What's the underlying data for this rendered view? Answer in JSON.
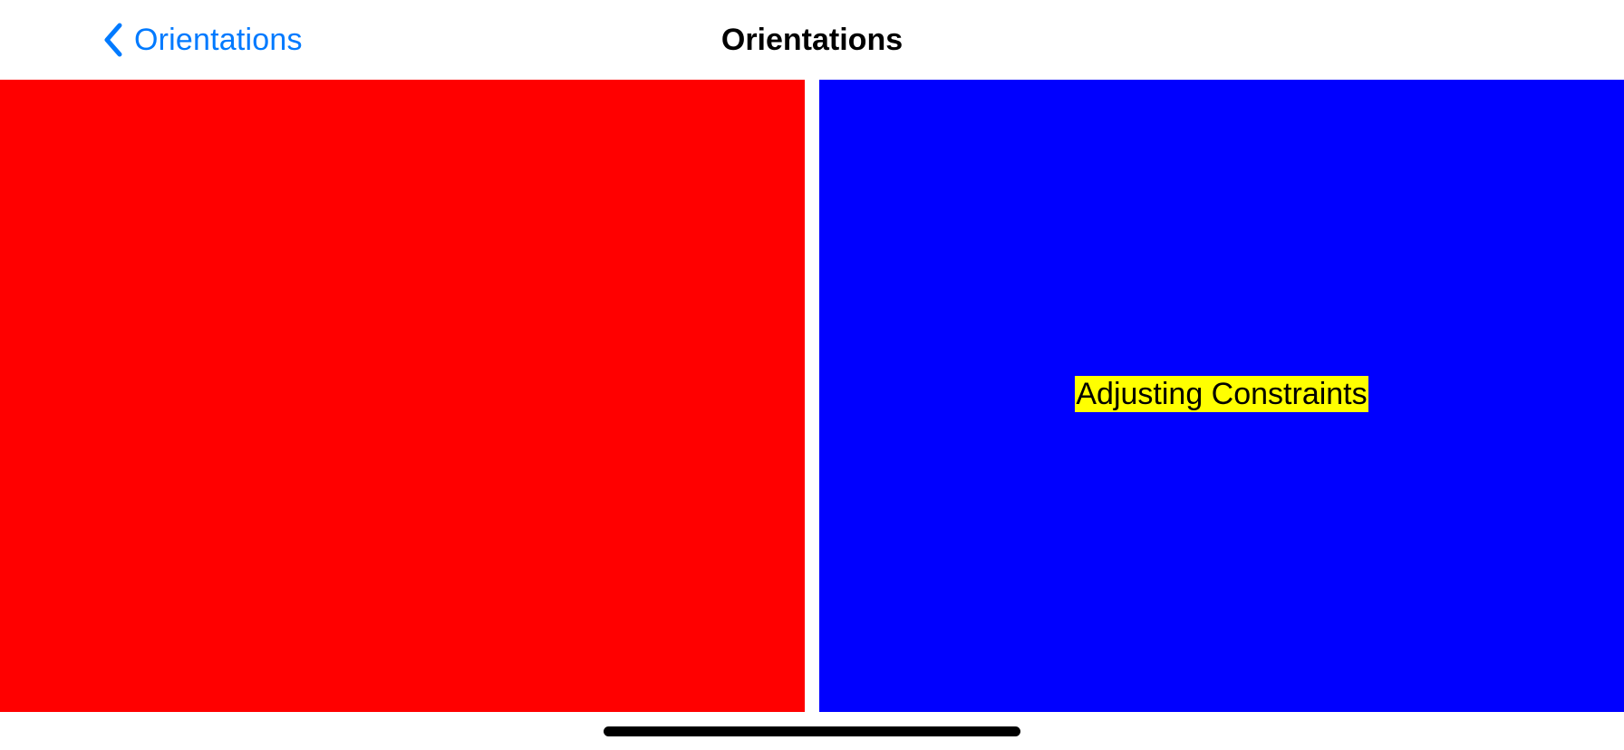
{
  "nav": {
    "back_label": "Orientations",
    "back_icon": "chevron-left-icon",
    "title": "Orientations"
  },
  "panels": {
    "left": {
      "color": "#ff0000"
    },
    "right": {
      "color": "#0000ff",
      "label": "Adjusting Constraints",
      "label_background": "#ffff00"
    }
  },
  "colors": {
    "tint": "#007aff",
    "title": "#000000",
    "background": "#ffffff",
    "home_indicator": "#000000"
  }
}
